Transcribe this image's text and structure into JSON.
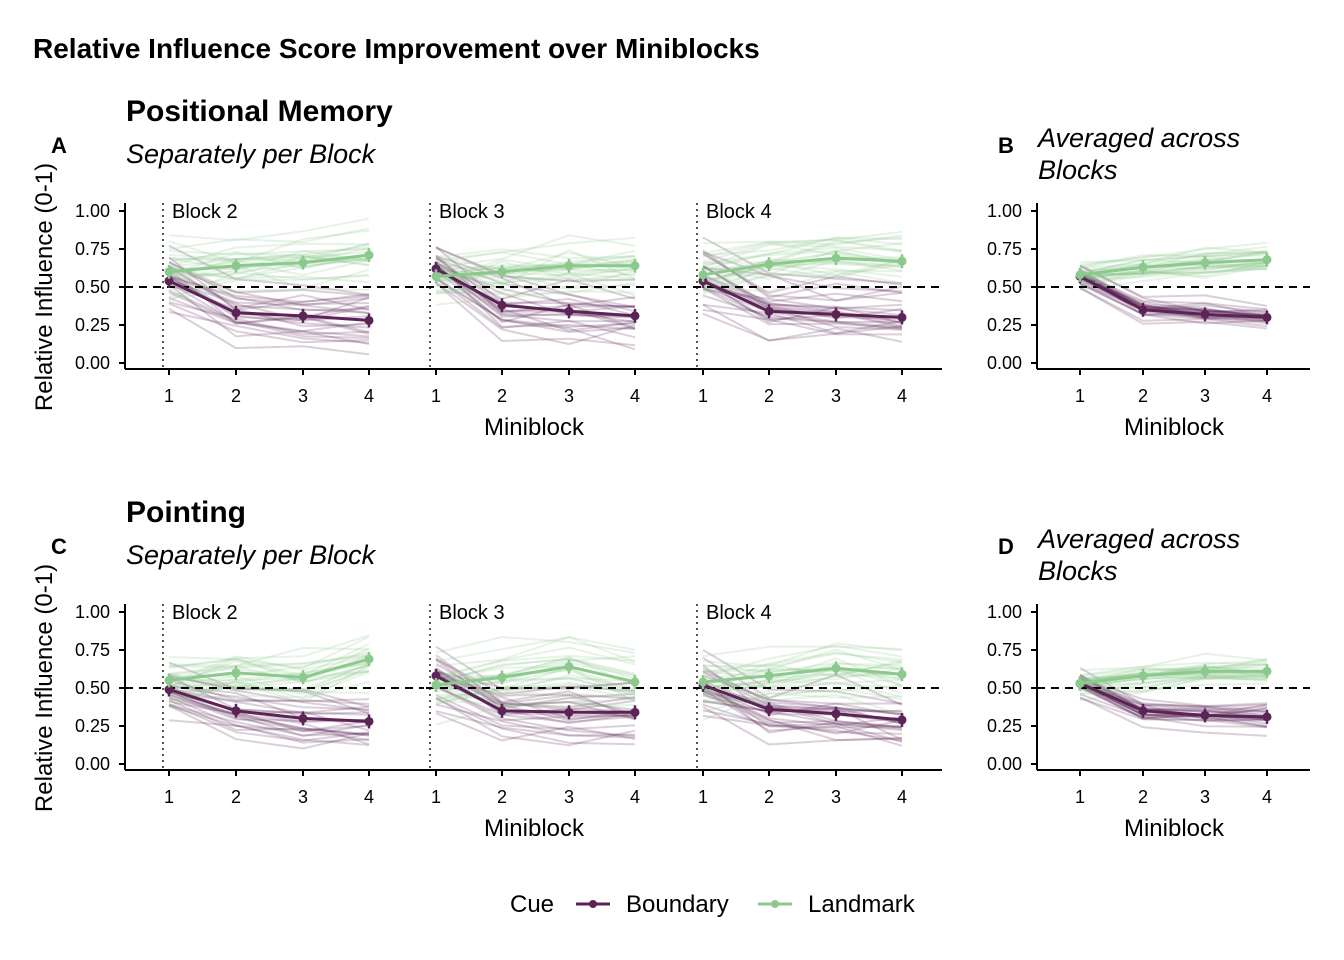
{
  "title": "Relative Influence Score Improvement over Miniblocks",
  "legend": {
    "title": "Cue",
    "items": [
      {
        "label": "Boundary",
        "color": "#5c2456"
      },
      {
        "label": "Landmark",
        "color": "#8bc98d"
      }
    ],
    "position": "bottom"
  },
  "sections": [
    {
      "title": "Positional Memory",
      "subtitle": "Separately per Block"
    },
    {
      "title": "Pointing",
      "subtitle": "Separately per Block"
    }
  ],
  "panels": [
    {
      "tag": "A",
      "subtitle": "",
      "facets": [
        "Block 2",
        "Block 3",
        "Block 4"
      ]
    },
    {
      "tag": "B",
      "subtitle_lines": [
        "Averaged across",
        "Blocks"
      ],
      "facets": [
        ""
      ]
    },
    {
      "tag": "C",
      "subtitle": "",
      "facets": [
        "Block 2",
        "Block 3",
        "Block 4"
      ]
    },
    {
      "tag": "D",
      "subtitle_lines": [
        "Averaged across",
        "Blocks"
      ],
      "facets": [
        ""
      ]
    }
  ],
  "axes": {
    "xlabel": "Miniblock",
    "ylabel": "Relative Influence (0-1)",
    "x_ticks": [
      "1",
      "2",
      "3",
      "4"
    ],
    "y_ticks": [
      "0.00",
      "0.25",
      "0.50",
      "0.75",
      "1.00"
    ],
    "ylim": [
      0,
      1
    ],
    "reference_line": 0.5
  },
  "chart_data": [
    {
      "type": "line",
      "panel": "A",
      "x": [
        1,
        2,
        3,
        4
      ],
      "facets": [
        {
          "name": "Block 2",
          "series": [
            {
              "name": "Boundary",
              "values": [
                0.54,
                0.33,
                0.31,
                0.28
              ]
            },
            {
              "name": "Landmark",
              "values": [
                0.6,
                0.64,
                0.66,
                0.71
              ]
            }
          ]
        },
        {
          "name": "Block 3",
          "series": [
            {
              "name": "Boundary",
              "values": [
                0.62,
                0.38,
                0.34,
                0.31
              ]
            },
            {
              "name": "Landmark",
              "values": [
                0.57,
                0.6,
                0.64,
                0.64
              ]
            }
          ]
        },
        {
          "name": "Block 4",
          "series": [
            {
              "name": "Boundary",
              "values": [
                0.54,
                0.34,
                0.32,
                0.3
              ]
            },
            {
              "name": "Landmark",
              "values": [
                0.58,
                0.65,
                0.69,
                0.67
              ]
            }
          ]
        }
      ],
      "xlabel": "Miniblock",
      "ylabel": "Relative Influence (0-1)",
      "ylim": [
        0,
        1
      ]
    },
    {
      "type": "line",
      "panel": "B",
      "x": [
        1,
        2,
        3,
        4
      ],
      "facets": [
        {
          "name": "",
          "series": [
            {
              "name": "Boundary",
              "values": [
                0.57,
                0.35,
                0.32,
                0.3
              ]
            },
            {
              "name": "Landmark",
              "values": [
                0.58,
                0.63,
                0.66,
                0.68
              ]
            }
          ]
        }
      ],
      "xlabel": "Miniblock",
      "ylim": [
        0,
        1
      ]
    },
    {
      "type": "line",
      "panel": "C",
      "x": [
        1,
        2,
        3,
        4
      ],
      "facets": [
        {
          "name": "Block 2",
          "series": [
            {
              "name": "Boundary",
              "values": [
                0.49,
                0.35,
                0.3,
                0.28
              ]
            },
            {
              "name": "Landmark",
              "values": [
                0.55,
                0.6,
                0.57,
                0.69
              ]
            }
          ]
        },
        {
          "name": "Block 3",
          "series": [
            {
              "name": "Boundary",
              "values": [
                0.58,
                0.35,
                0.34,
                0.34
              ]
            },
            {
              "name": "Landmark",
              "values": [
                0.52,
                0.57,
                0.64,
                0.54
              ]
            }
          ]
        },
        {
          "name": "Block 4",
          "series": [
            {
              "name": "Boundary",
              "values": [
                0.52,
                0.36,
                0.33,
                0.29
              ]
            },
            {
              "name": "Landmark",
              "values": [
                0.54,
                0.58,
                0.63,
                0.59
              ]
            }
          ]
        }
      ],
      "xlabel": "Miniblock",
      "ylabel": "Relative Influence (0-1)",
      "ylim": [
        0,
        1
      ]
    },
    {
      "type": "line",
      "panel": "D",
      "x": [
        1,
        2,
        3,
        4
      ],
      "facets": [
        {
          "name": "",
          "series": [
            {
              "name": "Boundary",
              "values": [
                0.53,
                0.35,
                0.32,
                0.31
              ]
            },
            {
              "name": "Landmark",
              "values": [
                0.53,
                0.58,
                0.61,
                0.61
              ]
            }
          ]
        }
      ],
      "xlabel": "Miniblock",
      "ylim": [
        0,
        1
      ]
    }
  ]
}
